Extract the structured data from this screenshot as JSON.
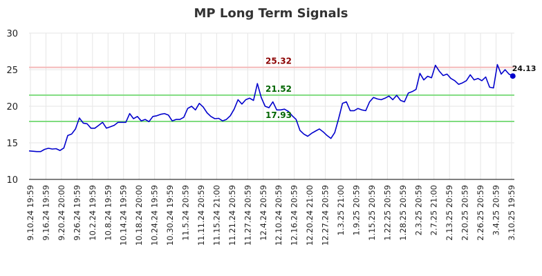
{
  "chart_data": {
    "type": "line",
    "title": "MP Long Term Signals",
    "xlabel": "",
    "ylabel": "",
    "ylim": [
      10,
      30
    ],
    "yticks": [
      10,
      15,
      20,
      25,
      30
    ],
    "grid": true,
    "x_tick_labels": [
      "9.10.24 19:59",
      "9.16.24 19:59",
      "9.20.24 20:00",
      "9.26.24 19:59",
      "10.2.24 19:59",
      "10.8.24 19:59",
      "10.14.24 19:59",
      "10.18.24 20:00",
      "10.24.24 19:59",
      "10.30.24 19:59",
      "11.5.24 20:59",
      "11.11.24 20:59",
      "11.15.24 21:00",
      "11.21.24 20:59",
      "11.27.24 20:59",
      "12.4.24 20:59",
      "12.10.24 20:59",
      "12.16.24 20:59",
      "12.20.24 21:00",
      "12.27.24 20:59",
      "1.3.25 21:00",
      "1.9.25 20:59",
      "1.15.25 20:59",
      "1.22.25 20:59",
      "1.28.25 20:59",
      "2.3.25 20:59",
      "2.7.25 21:00",
      "2.13.25 20:59",
      "2.20.25 20:59",
      "2.26.25 20:59",
      "3.4.25 20:59",
      "3.10.25 19:59"
    ],
    "series": [
      {
        "color": "#0000cc",
        "values": [
          13.9,
          13.85,
          13.8,
          13.8,
          14.1,
          14.25,
          14.15,
          14.2,
          13.95,
          14.3,
          16.0,
          16.2,
          16.9,
          18.4,
          17.7,
          17.6,
          17.0,
          17.0,
          17.4,
          17.8,
          17.0,
          17.2,
          17.4,
          17.8,
          17.8,
          17.8,
          19.0,
          18.3,
          18.6,
          18.0,
          18.2,
          17.9,
          18.6,
          18.7,
          18.9,
          19.0,
          18.8,
          18.0,
          18.2,
          18.2,
          18.5,
          19.7,
          20.0,
          19.5,
          20.4,
          19.9,
          19.1,
          18.6,
          18.3,
          18.35,
          18.0,
          18.2,
          18.7,
          19.6,
          20.9,
          20.3,
          20.9,
          21.1,
          20.8,
          23.1,
          21.2,
          20.0,
          19.8,
          20.6,
          19.5,
          19.5,
          19.6,
          19.3,
          18.7,
          18.2,
          16.7,
          16.2,
          15.9,
          16.3,
          16.6,
          16.9,
          16.5,
          16.0,
          15.6,
          16.4,
          18.3,
          20.4,
          20.6,
          19.4,
          19.4,
          19.7,
          19.5,
          19.4,
          20.6,
          21.2,
          21.0,
          20.9,
          21.1,
          21.4,
          20.9,
          21.5,
          20.8,
          20.6,
          21.8,
          22.0,
          22.3,
          24.5,
          23.6,
          24.1,
          23.9,
          25.6,
          24.8,
          24.2,
          24.4,
          23.8,
          23.5,
          23.0,
          23.2,
          23.5,
          24.3,
          23.6,
          23.8,
          23.5,
          24.0,
          22.6,
          22.5,
          25.7,
          24.4,
          25.0,
          24.4,
          24.13
        ]
      }
    ],
    "horizontal_lines": [
      {
        "value": 25.32,
        "label": "25.32",
        "line_color": "#f4b8b8",
        "label_color": "#8b0000"
      },
      {
        "value": 21.52,
        "label": "21.52",
        "line_color": "#7fdc7f",
        "label_color": "#006400"
      },
      {
        "value": 17.93,
        "label": "17.93",
        "line_color": "#7fdc7f",
        "label_color": "#006400"
      }
    ],
    "last_point_label": "24.13"
  }
}
